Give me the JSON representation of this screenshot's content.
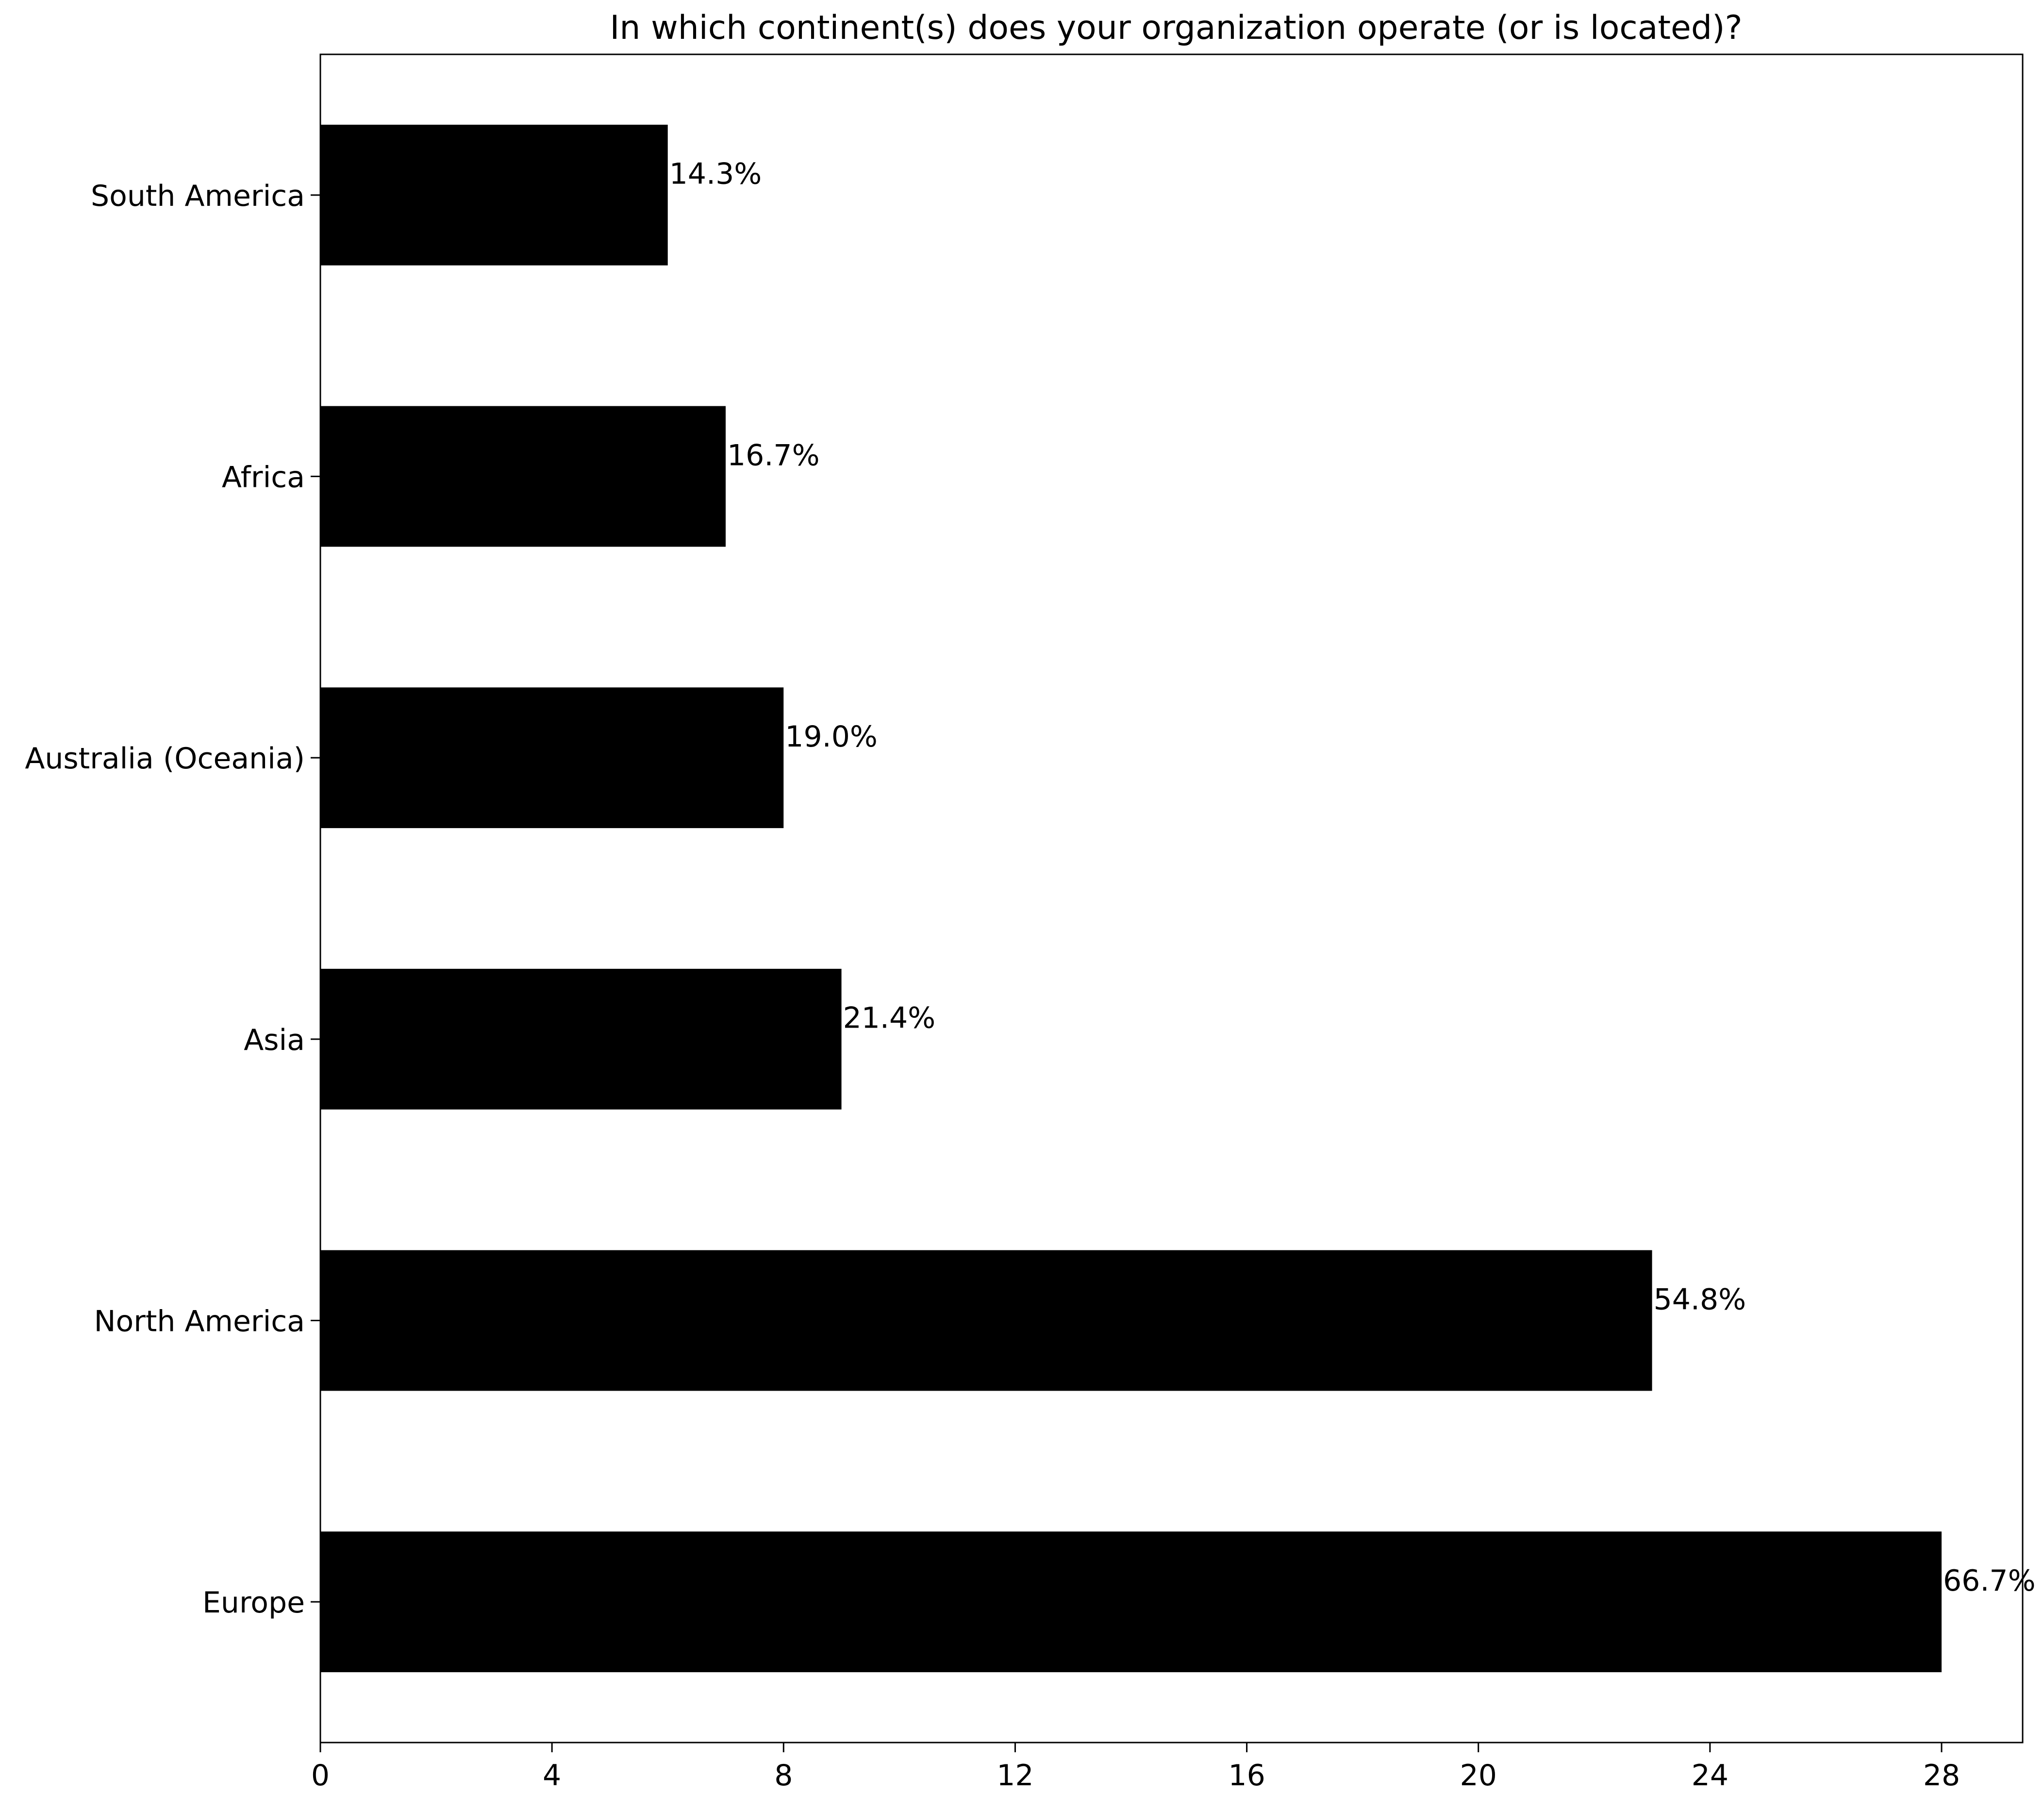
{
  "chart_data": {
    "type": "bar",
    "orientation": "horizontal",
    "title": "In which continent(s) does your organization operate (or is located)?",
    "xlabel": "",
    "ylabel": "",
    "categories": [
      "Europe",
      "North America",
      "Asia",
      "Australia (Oceania)",
      "Africa",
      "South America"
    ],
    "values": [
      28,
      23,
      9,
      8,
      7,
      6
    ],
    "data_labels": [
      "66.7%",
      "54.8%",
      "21.4%",
      "19.0%",
      "16.7%",
      "14.3%"
    ],
    "xlim": [
      0,
      29.4
    ],
    "xticks": [
      0,
      4,
      8,
      12,
      16,
      20,
      24,
      28
    ],
    "xtick_labels": [
      "0",
      "4",
      "8",
      "12",
      "16",
      "20",
      "24",
      "28"
    ],
    "bar_color": "#000000",
    "grid": false,
    "legend": "none"
  }
}
